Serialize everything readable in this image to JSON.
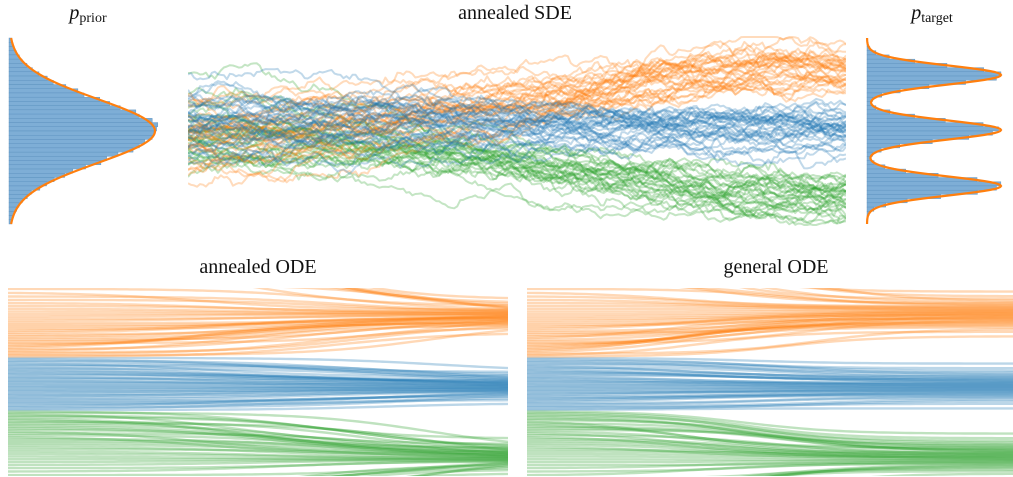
{
  "titles": {
    "prior_p": "p",
    "prior_sub": "prior",
    "sde": "annealed SDE",
    "target_p": "p",
    "target_sub": "target",
    "ode_annealed": "annealed ODE",
    "ode_general": "general ODE"
  },
  "colors": {
    "orange": "#ff7f0e",
    "blue": "#1f77b4",
    "green": "#2ca02c",
    "hist_fill": "#7eaed6",
    "density_line": "#ff7f0e"
  },
  "chart_data": [
    {
      "type": "histogram",
      "title": "p_prior",
      "distribution": "standard-normal",
      "modes": [
        {
          "mean": 0,
          "std": 1,
          "weight": 1
        }
      ],
      "orientation": "vertical-density"
    },
    {
      "type": "line",
      "title": "annealed SDE",
      "trajectory_groups": [
        {
          "color": "orange",
          "target_mode": 1,
          "stochastic": true
        },
        {
          "color": "blue",
          "target_mode": 0,
          "stochastic": true
        },
        {
          "color": "green",
          "target_mode": -1,
          "stochastic": true
        }
      ]
    },
    {
      "type": "histogram",
      "title": "p_target",
      "distribution": "gaussian-mixture",
      "modes": [
        {
          "mean": 1,
          "weight": 0.333
        },
        {
          "mean": 0,
          "weight": 0.333
        },
        {
          "mean": -1,
          "weight": 0.333
        }
      ],
      "orientation": "vertical-density"
    },
    {
      "type": "line",
      "title": "annealed ODE",
      "trajectory_groups": [
        {
          "color": "orange",
          "target_mode": 1,
          "stochastic": false
        },
        {
          "color": "blue",
          "target_mode": 0,
          "stochastic": false
        },
        {
          "color": "green",
          "target_mode": -1,
          "stochastic": false
        }
      ]
    },
    {
      "type": "line",
      "title": "general ODE",
      "trajectory_groups": [
        {
          "color": "orange",
          "target_mode": 1,
          "stochastic": false
        },
        {
          "color": "blue",
          "target_mode": 0,
          "stochastic": false
        },
        {
          "color": "green",
          "target_mode": -1,
          "stochastic": false
        }
      ]
    }
  ]
}
